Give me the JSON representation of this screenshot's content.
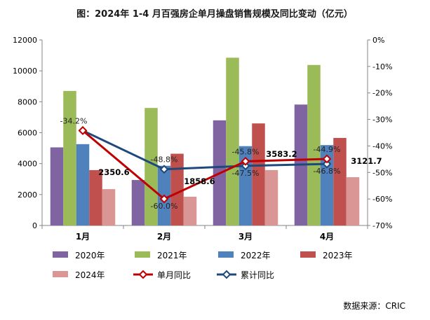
{
  "chart_data": {
    "type": "bar",
    "title": "图：2024年 1-4 月百强房企单月操盘销售规模及同比变动（亿元）",
    "categories": [
      "1月",
      "2月",
      "3月",
      "4月"
    ],
    "series": [
      {
        "name": "2020年",
        "kind": "bar",
        "color": "#8064a2",
        "values": [
          5050,
          2940,
          6800,
          7820
        ]
      },
      {
        "name": "2021年",
        "kind": "bar",
        "color": "#9bbb59",
        "values": [
          8700,
          7600,
          10850,
          10380
        ]
      },
      {
        "name": "2022年",
        "kind": "bar",
        "color": "#4f81bd",
        "values": [
          5260,
          3860,
          5130,
          5200
        ]
      },
      {
        "name": "2023年",
        "kind": "bar",
        "color": "#c0504d",
        "values": [
          3580,
          4640,
          6600,
          5660
        ]
      },
      {
        "name": "2024年",
        "kind": "bar",
        "color": "#d99694",
        "values": [
          2350.6,
          1858.6,
          3583.2,
          3121.7
        ]
      },
      {
        "name": "单月同比",
        "kind": "line",
        "axis": "right",
        "color": "#c00000",
        "values": [
          -34.2,
          -60.0,
          -45.8,
          -44.9
        ]
      },
      {
        "name": "累计同比",
        "kind": "line",
        "axis": "right",
        "color": "#1f497d",
        "values": [
          -34.2,
          -48.8,
          -47.5,
          -46.8
        ]
      }
    ],
    "bar_labels": [
      "2350.6",
      "1858.6",
      "3583.2",
      "3121.7"
    ],
    "monthly_yoy_labels": [
      "",
      "-60.0%",
      "-45.8%",
      "-44.9%"
    ],
    "cumulative_yoy_labels": [
      "-34.2%",
      "-48.8%",
      "-47.5%",
      "-46.8%"
    ],
    "y_left": {
      "min": 0,
      "max": 12000,
      "step": 2000,
      "ticks": [
        "0",
        "2000",
        "4000",
        "6000",
        "8000",
        "10000",
        "12000"
      ]
    },
    "y_right": {
      "min": -70,
      "max": 0,
      "step": 10,
      "ticks": [
        "0%",
        "-10%",
        "-20%",
        "-30%",
        "-40%",
        "-50%",
        "-60%",
        "-70%"
      ]
    },
    "legend": {
      "position": "bottom"
    },
    "source": "数据来源：CRIC"
  }
}
